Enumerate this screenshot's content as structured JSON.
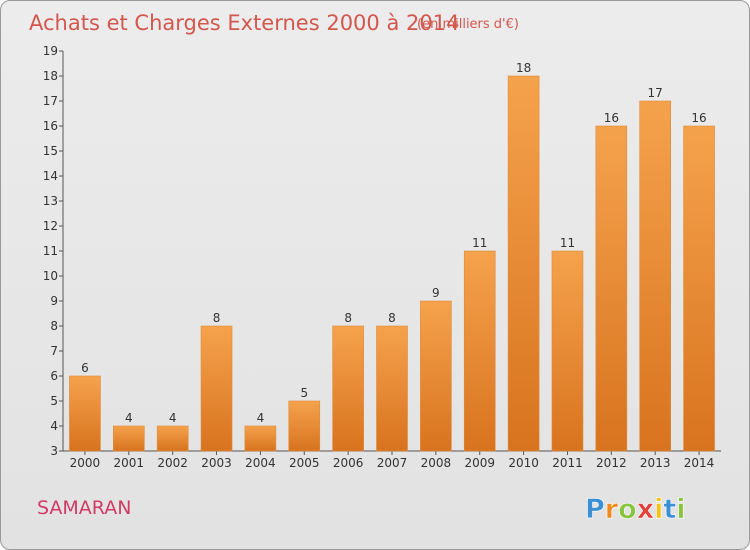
{
  "chart_data": {
    "type": "bar",
    "title": "Achats et Charges Externes 2000 à 2014",
    "subtitle": "(en milliers d'€)",
    "categories": [
      "2000",
      "2001",
      "2002",
      "2003",
      "2004",
      "2005",
      "2006",
      "2007",
      "2008",
      "2009",
      "2010",
      "2011",
      "2012",
      "2013",
      "2014"
    ],
    "values": [
      6,
      4,
      4,
      8,
      4,
      5,
      8,
      8,
      9,
      11,
      18,
      11,
      16,
      17,
      16
    ],
    "ylim": [
      3,
      19
    ],
    "yticks": [
      3,
      4,
      5,
      6,
      7,
      8,
      9,
      10,
      11,
      12,
      13,
      14,
      15,
      16,
      17,
      18,
      19
    ],
    "grid": false,
    "bar_color_top": "#f5a24d",
    "bar_color_bottom": "#d8731f"
  },
  "location": "SAMARAN",
  "logo": {
    "letters": [
      "P",
      "r",
      "o",
      "x",
      "i",
      "t",
      "i"
    ],
    "colors": [
      "#3b8fd4",
      "#f08a1c",
      "#8ac43f",
      "#e2403a",
      "#f5c218",
      "#3b8fd4",
      "#8ac43f"
    ]
  }
}
